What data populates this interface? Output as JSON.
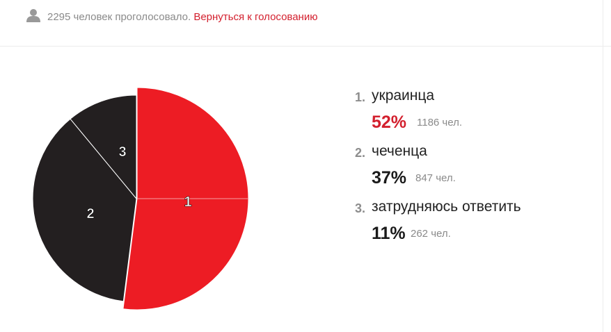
{
  "header": {
    "total_votes_text": "2295 человек проголосовало.",
    "back_link_label": "Вернуться к голосованию"
  },
  "colors": {
    "accent": "#ed1c24",
    "dark": "#231f20",
    "muted": "#8a8a8a"
  },
  "chart_data": {
    "type": "pie",
    "title": "",
    "total_votes": 2295,
    "slices": [
      {
        "rank": "1.",
        "label": "украинца",
        "percent": 52,
        "percent_text": "52%",
        "votes": 1186,
        "votes_text": "1186 чел.",
        "color": "#ed1c24",
        "slice_label": "1"
      },
      {
        "rank": "2.",
        "label": "чеченца",
        "percent": 37,
        "percent_text": "37%",
        "votes": 847,
        "votes_text": "847 чел.",
        "color": "#231f20",
        "slice_label": "2"
      },
      {
        "rank": "3.",
        "label": "затрудняюсь ответить",
        "percent": 11,
        "percent_text": "11%",
        "votes": 262,
        "votes_text": "262 чел.",
        "color": "#231f20",
        "slice_label": "3"
      }
    ]
  }
}
